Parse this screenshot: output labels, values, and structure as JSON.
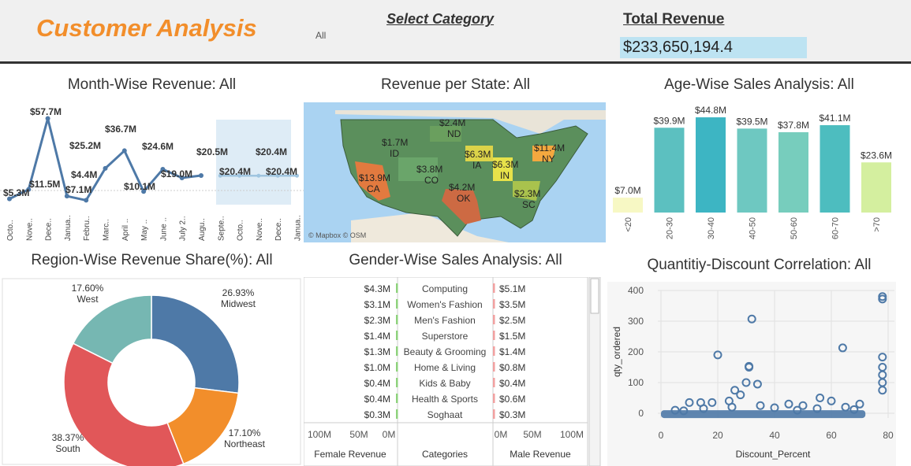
{
  "header": {
    "title": "Customer Analysis",
    "category_label": "Select Category",
    "category_value": "All",
    "revenue_label": "Total Revenue",
    "revenue_value": "$233,650,194.4"
  },
  "panels": {
    "month": "Month-Wise Revenue: All",
    "state": "Revenue per State: All",
    "age": "Age-Wise Sales Analysis: All",
    "region": "Region-Wise Revenue Share(%): All",
    "gender": "Gender-Wise Sales Analysis: All",
    "scatter": "Quantitiy-Discount Correlation: All"
  },
  "chart_data": [
    {
      "type": "line",
      "title": "Month-Wise Revenue: All",
      "categories": [
        "Octo..",
        "Nove..",
        "Dece..",
        "Janua..",
        "Febru..",
        "Marc..",
        "April ..",
        "May ..",
        "June ..",
        "July 2..",
        "Augu..",
        "Septe..",
        "Octo..",
        "Nove..",
        "Dece..",
        "Janua.."
      ],
      "series": [
        {
          "name": "",
          "values": [
            5.3,
            11.5,
            57.7,
            7.1,
            4.4,
            25.2,
            36.7,
            10.1,
            24.6,
            19.0,
            20.5,
            null,
            null,
            null,
            null,
            null
          ]
        },
        {
          "name": "",
          "values": [
            null,
            null,
            null,
            null,
            null,
            null,
            null,
            null,
            null,
            null,
            null,
            20.4,
            20.4,
            20.4,
            20.4,
            20.4
          ]
        }
      ],
      "data_labels": [
        "$5.3M",
        "$11.5M",
        "$57.7M",
        "$7.1M",
        "$4.4M",
        "$25.2M",
        "$36.7M",
        "$10.1M",
        "$24.6M",
        "$19.0M",
        "$20.5M",
        "$20.4M",
        "$20.4M",
        "$20.4M"
      ]
    },
    {
      "type": "bar",
      "title": "Age-Wise Sales Analysis: All",
      "categories": [
        "<20",
        "20-30",
        "30-40",
        "40-50",
        "50-60",
        "60-70",
        ">70"
      ],
      "values": [
        7.0,
        39.9,
        44.8,
        39.5,
        37.8,
        41.1,
        23.6
      ],
      "labels": [
        "$7.0M",
        "$39.9M",
        "$44.8M",
        "$39.5M",
        "$37.8M",
        "$41.1M",
        "$23.6M"
      ],
      "colors": [
        "#f7f8c4",
        "#5cc0c0",
        "#3db5c3",
        "#6ec8c1",
        "#77cdbd",
        "#4dbdbf",
        "#d4ef9f"
      ]
    },
    {
      "type": "pie",
      "title": "Region-Wise Revenue Share(%): All",
      "categories": [
        "Midwest",
        "Northeast",
        "South",
        "West"
      ],
      "values": [
        26.93,
        17.1,
        38.37,
        17.6
      ],
      "labels": [
        "26.93%",
        "17.10%",
        "38.37%",
        "17.60%"
      ],
      "colors": [
        "#4e79a7",
        "#f28e2b",
        "#e15759",
        "#76b7b2"
      ]
    },
    {
      "type": "bar",
      "title": "Gender-Wise Sales Analysis: All",
      "categories": [
        "Computing",
        "Women's Fashion",
        "Men's Fashion",
        "Superstore",
        "Beauty & Grooming",
        "Home & Living",
        "Kids & Baby",
        "Health & Sports",
        "Soghaat"
      ],
      "series": [
        {
          "name": "Female Revenue",
          "values": [
            4.3,
            3.1,
            2.3,
            1.4,
            1.3,
            1.0,
            0.4,
            0.4,
            0.3
          ],
          "labels": [
            "$4.3M",
            "$3.1M",
            "$2.3M",
            "$1.4M",
            "$1.3M",
            "$1.0M",
            "$0.4M",
            "$0.4M",
            "$0.3M"
          ]
        },
        {
          "name": "Male Revenue",
          "values": [
            5.1,
            3.5,
            2.5,
            1.5,
            1.4,
            0.8,
            0.4,
            0.6,
            0.3
          ],
          "labels": [
            "$5.1M",
            "$3.5M",
            "$2.5M",
            "$1.5M",
            "$1.4M",
            "$0.8M",
            "$0.4M",
            "$0.6M",
            "$0.3M"
          ]
        }
      ],
      "xlabels": {
        "female": "Female Revenue",
        "middle": "Categories",
        "male": "Male Revenue"
      },
      "female_ticks": [
        "100M",
        "50M",
        "0M"
      ],
      "male_ticks": [
        "0M",
        "50M",
        "100M"
      ]
    },
    {
      "type": "scatter",
      "title": "Quantitiy-Discount Correlation: All",
      "xlabel": "Discount_Percent",
      "ylabel": "qty_ordered",
      "xlim": [
        0,
        80
      ],
      "ylim": [
        0,
        400
      ],
      "xticks": [
        0,
        20,
        40,
        60,
        80
      ],
      "yticks": [
        0,
        100,
        200,
        300,
        400
      ],
      "points": [
        [
          32,
          307
        ],
        [
          20,
          190
        ],
        [
          64,
          213
        ],
        [
          31,
          153
        ],
        [
          31,
          150
        ],
        [
          78,
          380
        ],
        [
          78,
          372
        ],
        [
          78,
          183
        ],
        [
          78,
          150
        ],
        [
          78,
          125
        ],
        [
          78,
          100
        ],
        [
          30,
          100
        ],
        [
          34,
          95
        ],
        [
          26,
          75
        ],
        [
          78,
          75
        ],
        [
          28,
          60
        ],
        [
          24,
          40
        ],
        [
          10,
          35
        ],
        [
          14,
          35
        ],
        [
          18,
          35
        ],
        [
          56,
          50
        ],
        [
          60,
          40
        ],
        [
          70,
          30
        ],
        [
          5,
          10
        ],
        [
          15,
          15
        ],
        [
          25,
          20
        ],
        [
          35,
          25
        ],
        [
          45,
          30
        ],
        [
          50,
          25
        ],
        [
          65,
          20
        ],
        [
          40,
          18
        ],
        [
          55,
          15
        ],
        [
          68,
          12
        ],
        [
          8,
          8
        ],
        [
          48,
          10
        ]
      ],
      "color": "#4e79a7"
    },
    {
      "type": "map",
      "title": "Revenue per State: All",
      "labels": [
        {
          "value": "$2.4M",
          "state": "ND"
        },
        {
          "value": "$1.7M",
          "state": "ID"
        },
        {
          "value": "$6.3M",
          "state": "IA"
        },
        {
          "value": "$11.4M",
          "state": "NY"
        },
        {
          "value": "$3.8M",
          "state": "CO"
        },
        {
          "value": "$6.3M",
          "state": "IN"
        },
        {
          "value": "$13.9M",
          "state": "CA"
        },
        {
          "value": "$4.2M",
          "state": "OK"
        },
        {
          "value": "$2.3M",
          "state": "SC"
        }
      ],
      "attribution": "© Mapbox © OSM"
    }
  ]
}
